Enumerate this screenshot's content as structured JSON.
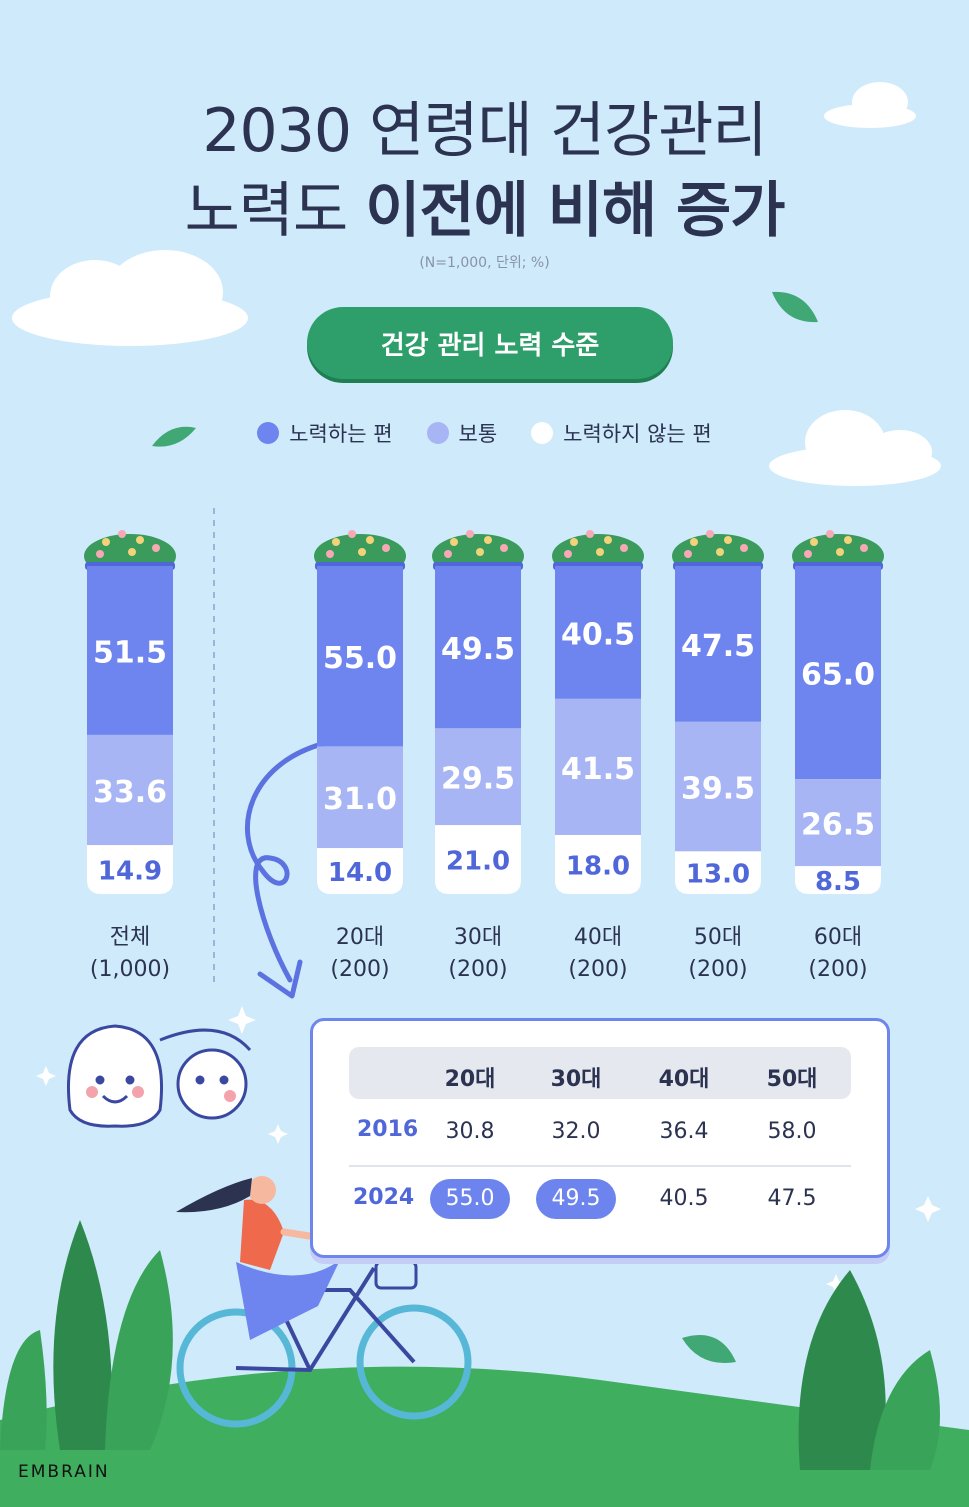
{
  "title_line1": "2030 연령대 건강관리",
  "title_line2_normal": "노력도 ",
  "title_line2_bold": "이전에 비해 증가",
  "note": "(N=1,000, 단위; %)",
  "section_label": "건강 관리 노력 수준",
  "colors": {
    "effort": "#6e84ee",
    "normal": "#a8b5f5",
    "none": "#ffffff",
    "accent_green": "#2e9f6b",
    "title": "#2b3350"
  },
  "chart_data": {
    "type": "bar",
    "stacked": true,
    "title": "건강 관리 노력 수준",
    "unit": "%",
    "ylim": [
      0,
      100
    ],
    "legend": [
      "노력하는 편",
      "보통",
      "노력하지 않는 편"
    ],
    "categories": [
      {
        "name": "전체",
        "n": "(1,000)"
      },
      {
        "name": "20대",
        "n": "(200)"
      },
      {
        "name": "30대",
        "n": "(200)"
      },
      {
        "name": "40대",
        "n": "(200)"
      },
      {
        "name": "50대",
        "n": "(200)"
      },
      {
        "name": "60대",
        "n": "(200)"
      }
    ],
    "series": [
      {
        "name": "노력하는 편",
        "values": [
          "51.5",
          "55.0",
          "49.5",
          "40.5",
          "47.5",
          "65.0"
        ]
      },
      {
        "name": "보통",
        "values": [
          "33.6",
          "31.0",
          "29.5",
          "41.5",
          "39.5",
          "26.5"
        ]
      },
      {
        "name": "노력하지 않는 편",
        "values": [
          "14.9",
          "14.0",
          "21.0",
          "18.0",
          "13.0",
          "8.5"
        ]
      }
    ]
  },
  "comparison_table": {
    "columns": [
      "20대",
      "30대",
      "40대",
      "50대"
    ],
    "rows": [
      {
        "year": "2016",
        "values": [
          "30.8",
          "32.0",
          "36.4",
          "58.0"
        ]
      },
      {
        "year": "2024",
        "values": [
          "55.0",
          "49.5",
          "40.5",
          "47.5"
        ],
        "highlighted": [
          0,
          1
        ]
      }
    ]
  },
  "brand": "EMBRAIN"
}
